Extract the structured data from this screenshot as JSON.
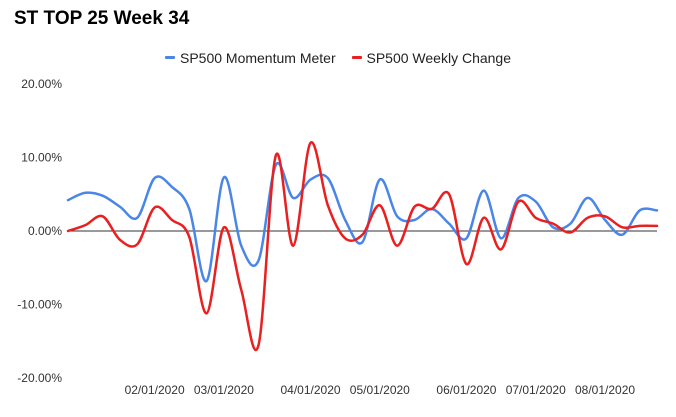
{
  "chart_data": {
    "type": "line",
    "title": "ST TOP 25 Week 34",
    "xlabel": "",
    "ylabel": "",
    "ylim": [
      -0.2,
      0.2
    ],
    "y_ticks": [
      0.2,
      0.1,
      0.0,
      -0.1,
      -0.2
    ],
    "y_tick_labels": [
      "20.00%",
      "10.00%",
      "0.00%",
      "-10.00%",
      "-20.00%"
    ],
    "x_domain": [
      1,
      35
    ],
    "x_ticks": [
      6,
      10,
      15,
      19,
      24,
      28,
      32
    ],
    "x_tick_labels": [
      "02/01/2020",
      "03/01/2020",
      "04/01/2020",
      "05/01/2020",
      "06/01/2020",
      "07/01/2020",
      "08/01/2020"
    ],
    "legend_position": "top",
    "gridlines": "none",
    "series": [
      {
        "name": "SP500 Momentum Meter",
        "color": "#4a86e8",
        "x": [
          1,
          2,
          3,
          4,
          5,
          6,
          7,
          8,
          9,
          10,
          11,
          12,
          13,
          14,
          15,
          16,
          17,
          18,
          19,
          20,
          21,
          22,
          23,
          24,
          25,
          26,
          27,
          28,
          29,
          30,
          31,
          32,
          33,
          34,
          35
        ],
        "values": [
          0.042,
          0.052,
          0.048,
          0.033,
          0.018,
          0.072,
          0.06,
          0.03,
          -0.068,
          0.073,
          -0.02,
          -0.04,
          0.09,
          0.045,
          0.07,
          0.072,
          0.015,
          -0.015,
          0.07,
          0.02,
          0.015,
          0.03,
          0.01,
          -0.01,
          0.055,
          -0.01,
          0.045,
          0.04,
          0.005,
          0.01,
          0.045,
          0.015,
          -0.005,
          0.028,
          0.028
        ]
      },
      {
        "name": "SP500 Weekly Change",
        "color": "#ea1f1f",
        "x": [
          1,
          2,
          3,
          4,
          5,
          6,
          7,
          8,
          9,
          10,
          11,
          12,
          13,
          14,
          15,
          16,
          17,
          18,
          19,
          20,
          21,
          22,
          23,
          24,
          25,
          26,
          27,
          28,
          29,
          30,
          31,
          32,
          33,
          34,
          35
        ],
        "values": [
          0.0,
          0.008,
          0.02,
          -0.012,
          -0.018,
          0.032,
          0.015,
          -0.008,
          -0.112,
          0.005,
          -0.08,
          -0.155,
          0.103,
          -0.02,
          0.12,
          0.035,
          -0.01,
          -0.005,
          0.035,
          -0.02,
          0.033,
          0.03,
          0.05,
          -0.045,
          0.018,
          -0.025,
          0.04,
          0.018,
          0.01,
          -0.002,
          0.018,
          0.02,
          0.005,
          0.007,
          0.007
        ]
      }
    ]
  }
}
